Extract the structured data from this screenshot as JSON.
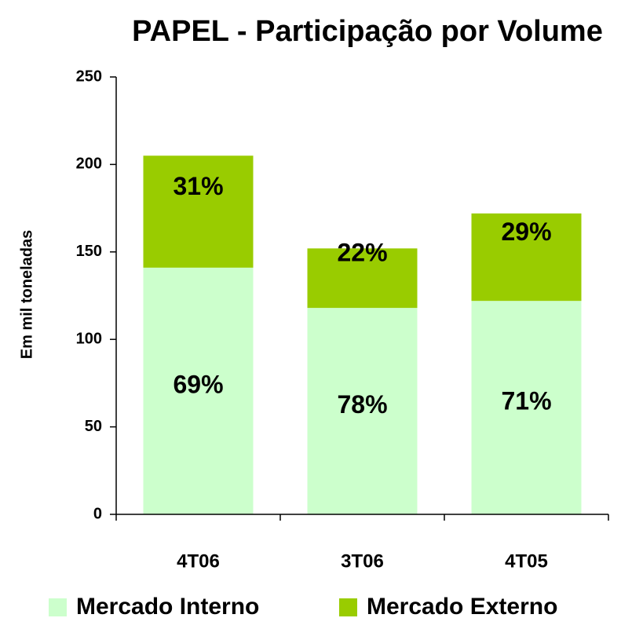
{
  "chart_data": {
    "type": "stacked_bar",
    "title": "PAPEL - Participação por Volume",
    "y_label": "Em mil toneladas",
    "categories": [
      "4T06",
      "3T06",
      "4T05"
    ],
    "series": [
      {
        "name": "Mercado Interno",
        "color": "#ccffcc",
        "values": [
          141,
          118,
          122
        ],
        "data_labels": [
          "69%",
          "78%",
          "71%"
        ]
      },
      {
        "name": "Mercado Externo",
        "color": "#99cc00",
        "values": [
          64,
          34,
          50
        ],
        "data_labels": [
          "31%",
          "22%",
          "29%"
        ]
      }
    ],
    "ylim": [
      0,
      250
    ],
    "yticks": [
      0,
      50,
      100,
      150,
      200,
      250
    ],
    "grid": false,
    "legend": "bottom"
  }
}
